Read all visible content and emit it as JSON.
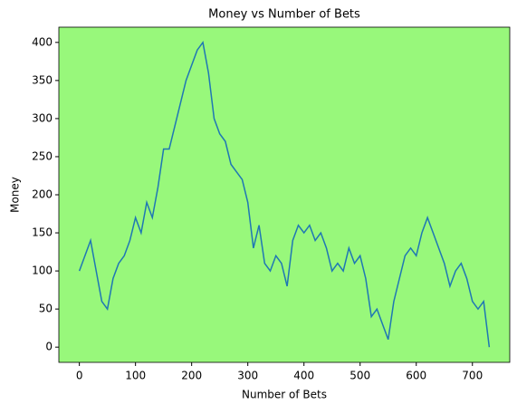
{
  "chart_data": {
    "type": "line",
    "title": "Money vs Number of Bets",
    "xlabel": "Number of Bets",
    "ylabel": "Money",
    "x": [
      0,
      10,
      20,
      30,
      40,
      50,
      60,
      70,
      80,
      90,
      100,
      110,
      120,
      130,
      140,
      150,
      160,
      170,
      180,
      190,
      200,
      210,
      220,
      230,
      240,
      250,
      260,
      270,
      280,
      290,
      300,
      310,
      320,
      330,
      340,
      350,
      360,
      370,
      380,
      390,
      400,
      410,
      420,
      430,
      440,
      450,
      460,
      470,
      480,
      490,
      500,
      510,
      520,
      530,
      540,
      550,
      560,
      570,
      580,
      590,
      600,
      610,
      620,
      630,
      640,
      650,
      660,
      670,
      680,
      690,
      700,
      710,
      720,
      730
    ],
    "series": [
      {
        "name": "Money",
        "color": "#1f77b4",
        "values": [
          100,
          120,
          140,
          100,
          60,
          50,
          90,
          110,
          120,
          140,
          170,
          150,
          190,
          170,
          210,
          260,
          260,
          290,
          320,
          350,
          370,
          390,
          400,
          360,
          300,
          280,
          270,
          240,
          230,
          220,
          190,
          130,
          160,
          110,
          100,
          120,
          110,
          80,
          140,
          160,
          150,
          160,
          140,
          150,
          130,
          100,
          110,
          100,
          130,
          110,
          120,
          90,
          40,
          50,
          30,
          10,
          60,
          90,
          120,
          130,
          120,
          150,
          170,
          150,
          130,
          110,
          80,
          100,
          110,
          90,
          60,
          50,
          60,
          0
        ]
      }
    ],
    "xlim": [
      -36.5,
      766.5
    ],
    "ylim": [
      -20,
      420
    ],
    "xticks": [
      0,
      100,
      200,
      300,
      400,
      500,
      600,
      700
    ],
    "yticks": [
      0,
      50,
      100,
      150,
      200,
      250,
      300,
      350,
      400
    ],
    "background": "#98f87b"
  }
}
